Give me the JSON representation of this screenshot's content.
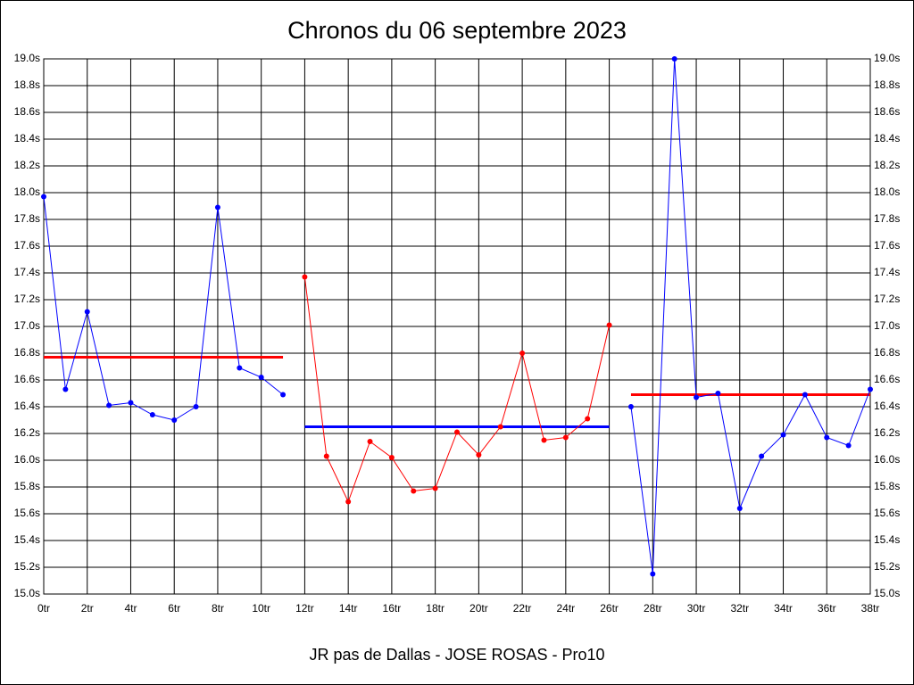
{
  "chart_data": {
    "type": "line",
    "title": "Chronos du 06 septembre 2023",
    "x_label": "JR pas de Dallas - JOSE ROSAS - Pro10",
    "x": [
      0,
      1,
      2,
      3,
      4,
      5,
      6,
      7,
      8,
      9,
      10,
      11,
      12,
      13,
      14,
      15,
      16,
      17,
      18,
      19,
      20,
      21,
      22,
      23,
      24,
      25,
      26,
      27,
      28,
      29,
      30,
      31,
      32,
      33,
      34,
      35,
      36,
      37,
      38
    ],
    "series": [
      {
        "color": "#0000ff",
        "values": [
          17.97,
          16.53,
          17.11,
          16.41,
          16.43,
          16.34,
          16.3,
          16.4,
          17.89,
          16.69,
          16.62,
          16.49,
          null,
          null,
          null,
          null,
          null,
          null,
          null,
          null,
          null,
          null,
          null,
          null,
          null,
          null,
          null,
          null,
          null,
          null,
          null,
          null,
          null,
          null,
          null,
          null,
          null,
          null,
          null
        ]
      },
      {
        "color": "#ff0000",
        "values": [
          null,
          null,
          null,
          null,
          null,
          null,
          null,
          null,
          null,
          null,
          null,
          null,
          17.37,
          16.03,
          15.69,
          16.14,
          16.02,
          15.77,
          15.79,
          16.21,
          16.04,
          16.25,
          16.8,
          16.15,
          16.17,
          16.31,
          17.01,
          null,
          null,
          null,
          null,
          null,
          null,
          null,
          null,
          null,
          null,
          null,
          null
        ]
      },
      {
        "color": "#0000ff",
        "values": [
          null,
          null,
          null,
          null,
          null,
          null,
          null,
          null,
          null,
          null,
          null,
          null,
          null,
          null,
          null,
          null,
          null,
          null,
          null,
          null,
          null,
          null,
          null,
          null,
          null,
          null,
          null,
          16.4,
          15.15,
          19.0,
          16.47,
          16.5,
          15.64,
          16.03,
          16.19,
          16.49,
          16.17,
          16.11,
          16.53
        ]
      }
    ],
    "reference_lines": [
      {
        "value": 16.77,
        "x_range": [
          0,
          11
        ],
        "color": "#ff0000"
      },
      {
        "value": 16.25,
        "x_range": [
          12,
          26
        ],
        "color": "#0000ff"
      },
      {
        "value": 16.49,
        "x_range": [
          27,
          38
        ],
        "color": "#ff0000"
      }
    ],
    "xlim": [
      0,
      38
    ],
    "ylim": [
      15,
      19
    ],
    "grid": true,
    "right_axis_labels": true,
    "xticks": [
      {
        "value": 0,
        "label": "0tr"
      },
      {
        "value": 2,
        "label": "2tr"
      },
      {
        "value": 4,
        "label": "4tr"
      },
      {
        "value": 6,
        "label": "6tr"
      },
      {
        "value": 8,
        "label": "8tr"
      },
      {
        "value": 10,
        "label": "10tr"
      },
      {
        "value": 12,
        "label": "12tr"
      },
      {
        "value": 14,
        "label": "14tr"
      },
      {
        "value": 16,
        "label": "16tr"
      },
      {
        "value": 18,
        "label": "18tr"
      },
      {
        "value": 20,
        "label": "20tr"
      },
      {
        "value": 22,
        "label": "22tr"
      },
      {
        "value": 24,
        "label": "24tr"
      },
      {
        "value": 26,
        "label": "26tr"
      },
      {
        "value": 28,
        "label": "28tr"
      },
      {
        "value": 30,
        "label": "30tr"
      },
      {
        "value": 32,
        "label": "32tr"
      },
      {
        "value": 34,
        "label": "34tr"
      },
      {
        "value": 36,
        "label": "36tr"
      },
      {
        "value": 38,
        "label": "38tr"
      }
    ],
    "yticks": [
      {
        "value": 15.0,
        "label": "15.0s"
      },
      {
        "value": 15.2,
        "label": "15.2s"
      },
      {
        "value": 15.4,
        "label": "15.4s"
      },
      {
        "value": 15.6,
        "label": "15.6s"
      },
      {
        "value": 15.8,
        "label": "15.8s"
      },
      {
        "value": 16.0,
        "label": "16.0s"
      },
      {
        "value": 16.2,
        "label": "16.2s"
      },
      {
        "value": 16.4,
        "label": "16.4s"
      },
      {
        "value": 16.6,
        "label": "16.6s"
      },
      {
        "value": 16.8,
        "label": "16.8s"
      },
      {
        "value": 17.0,
        "label": "17.0s"
      },
      {
        "value": 17.2,
        "label": "17.2s"
      },
      {
        "value": 17.4,
        "label": "17.4s"
      },
      {
        "value": 17.6,
        "label": "17.6s"
      },
      {
        "value": 17.8,
        "label": "17.8s"
      },
      {
        "value": 18.0,
        "label": "18.0s"
      },
      {
        "value": 18.2,
        "label": "18.2s"
      },
      {
        "value": 18.4,
        "label": "18.4s"
      },
      {
        "value": 18.6,
        "label": "18.6s"
      },
      {
        "value": 18.8,
        "label": "18.8s"
      },
      {
        "value": 19.0,
        "label": "19.0s"
      }
    ]
  }
}
